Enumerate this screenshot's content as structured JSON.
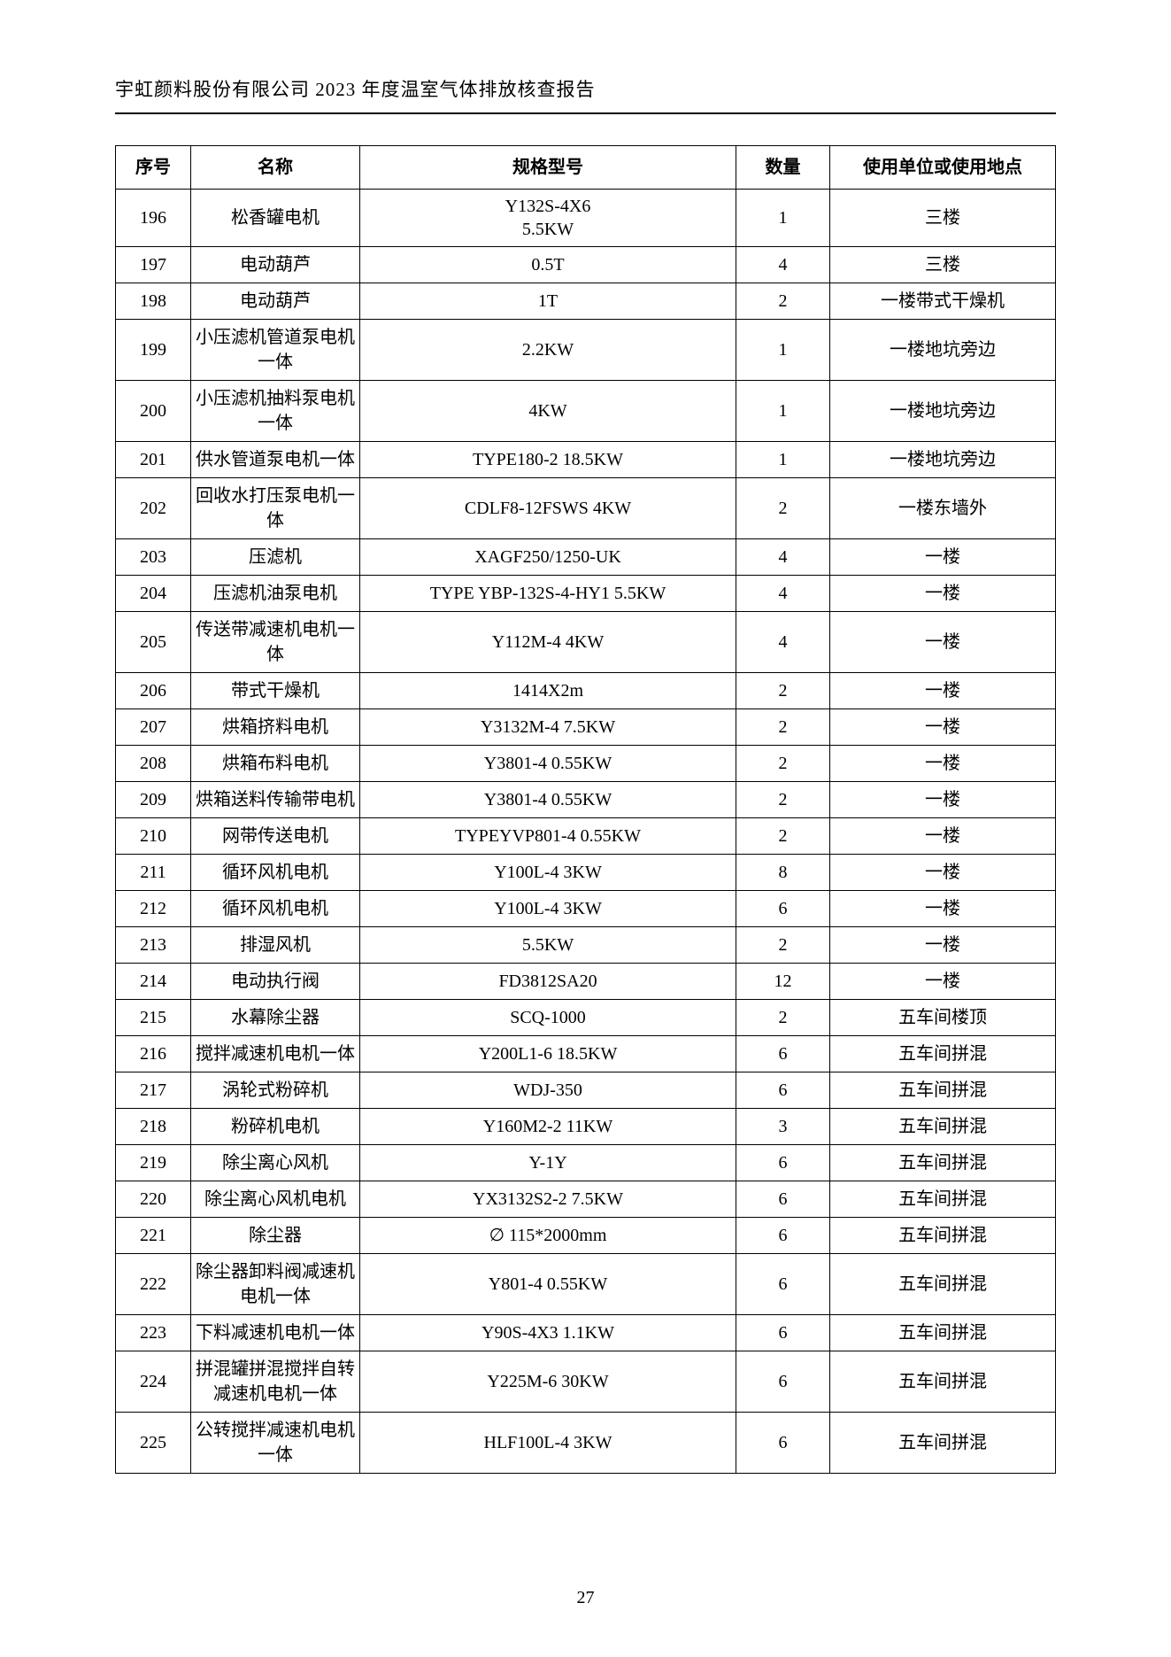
{
  "header": "宇虹颜料股份有限公司 2023 年度温室气体排放核查报告",
  "page_number": "27",
  "table": {
    "columns": [
      "序号",
      "名称",
      "规格型号",
      "数量",
      "使用单位或使用地点"
    ],
    "rows": [
      [
        "196",
        "松香罐电机",
        "Y132S-4X6\n5.5KW",
        "1",
        "三楼"
      ],
      [
        "197",
        "电动葫芦",
        "0.5T",
        "4",
        "三楼"
      ],
      [
        "198",
        "电动葫芦",
        "1T",
        "2",
        "一楼带式干燥机"
      ],
      [
        "199",
        "小压滤机管道泵电机一体",
        "2.2KW",
        "1",
        "一楼地坑旁边"
      ],
      [
        "200",
        "小压滤机抽料泵电机一体",
        "4KW",
        "1",
        "一楼地坑旁边"
      ],
      [
        "201",
        "供水管道泵电机一体",
        "TYPE180-2 18.5KW",
        "1",
        "一楼地坑旁边"
      ],
      [
        "202",
        "回收水打压泵电机一体",
        "CDLF8-12FSWS 4KW",
        "2",
        "一楼东墙外"
      ],
      [
        "203",
        "压滤机",
        "XAGF250/1250-UK",
        "4",
        "一楼"
      ],
      [
        "204",
        "压滤机油泵电机",
        "TYPE YBP-132S-4-HY1 5.5KW",
        "4",
        "一楼"
      ],
      [
        "205",
        "传送带减速机电机一体",
        "Y112M-4 4KW",
        "4",
        "一楼"
      ],
      [
        "206",
        "带式干燥机",
        "1414X2m",
        "2",
        "一楼"
      ],
      [
        "207",
        "烘箱挤料电机",
        "Y3132M-4 7.5KW",
        "2",
        "一楼"
      ],
      [
        "208",
        "烘箱布料电机",
        "Y3801-4 0.55KW",
        "2",
        "一楼"
      ],
      [
        "209",
        "烘箱送料传输带电机",
        "Y3801-4 0.55KW",
        "2",
        "一楼"
      ],
      [
        "210",
        "网带传送电机",
        "TYPEYVP801-4 0.55KW",
        "2",
        "一楼"
      ],
      [
        "211",
        "循环风机电机",
        "Y100L-4 3KW",
        "8",
        "一楼"
      ],
      [
        "212",
        "循环风机电机",
        "Y100L-4 3KW",
        "6",
        "一楼"
      ],
      [
        "213",
        "排湿风机",
        "5.5KW",
        "2",
        "一楼"
      ],
      [
        "214",
        "电动执行阀",
        "FD3812SA20",
        "12",
        "一楼"
      ],
      [
        "215",
        "水幕除尘器",
        "SCQ-1000",
        "2",
        "五车间楼顶"
      ],
      [
        "216",
        "搅拌减速机电机一体",
        "Y200L1-6 18.5KW",
        "6",
        "五车间拼混"
      ],
      [
        "217",
        "涡轮式粉碎机",
        "WDJ-350",
        "6",
        "五车间拼混"
      ],
      [
        "218",
        "粉碎机电机",
        "Y160M2-2 11KW",
        "3",
        "五车间拼混"
      ],
      [
        "219",
        "除尘离心风机",
        "Y-1Y",
        "6",
        "五车间拼混"
      ],
      [
        "220",
        "除尘离心风机电机",
        "YX3132S2-2 7.5KW",
        "6",
        "五车间拼混"
      ],
      [
        "221",
        "除尘器",
        "∅ 115*2000mm",
        "6",
        "五车间拼混"
      ],
      [
        "222",
        "除尘器卸料阀减速机电机一体",
        "Y801-4 0.55KW",
        "6",
        "五车间拼混"
      ],
      [
        "223",
        "下料减速机电机一体",
        "Y90S-4X3 1.1KW",
        "6",
        "五车间拼混"
      ],
      [
        "224",
        "拼混罐拼混搅拌自转减速机电机一体",
        "Y225M-6 30KW",
        "6",
        "五车间拼混"
      ],
      [
        "225",
        "公转搅拌减速机电机一体",
        "HLF100L-4 3KW",
        "6",
        "五车间拼混"
      ]
    ]
  }
}
